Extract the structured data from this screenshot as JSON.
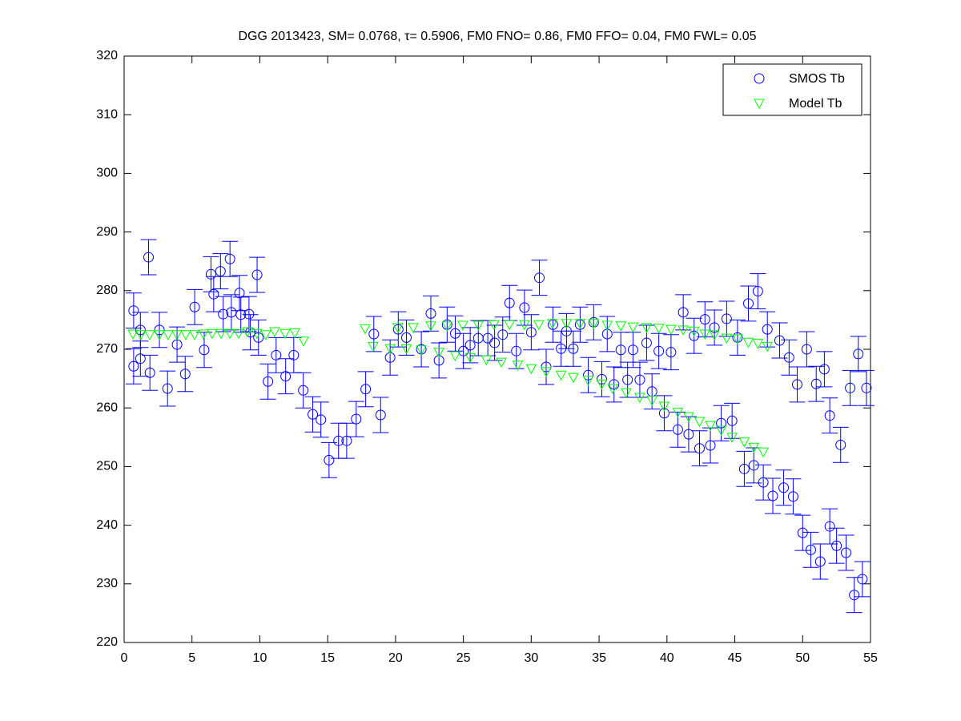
{
  "chart_data": {
    "type": "scatter",
    "title": "DGG 2013423, SM= 0.0768, τ= 0.5906, FM0 FNO= 0.86, FM0 FFO= 0.04, FM0 FWL= 0.05",
    "xlim": [
      0,
      55
    ],
    "xticks": [
      0,
      5,
      10,
      15,
      20,
      25,
      30,
      35,
      40,
      45,
      50,
      55
    ],
    "ylim": [
      220,
      320
    ],
    "yticks": [
      220,
      230,
      240,
      250,
      260,
      270,
      280,
      290,
      300,
      310,
      320
    ],
    "grid": false,
    "legend": "top-right",
    "series": [
      {
        "name": "SMOS Tb",
        "color": "#0000ff",
        "marker": "circle",
        "error": 3,
        "x": [
          0.7,
          0.7,
          1.2,
          1.2,
          1.8,
          1.9,
          2.6,
          3.2,
          3.9,
          4.5,
          5.2,
          5.9,
          6.4,
          6.6,
          7.1,
          7.3,
          7.8,
          7.9,
          8.5,
          8.6,
          9.2,
          9.3,
          9.8,
          9.9,
          10.6,
          11.2,
          11.9,
          12.5,
          13.2,
          13.9,
          14.5,
          15.1,
          15.8,
          16.4,
          17.1,
          17.8,
          18.4,
          18.9,
          19.6,
          20.2,
          20.8,
          21.9,
          22.6,
          23.2,
          23.8,
          24.4,
          25.0,
          25.5,
          26.1,
          26.8,
          27.3,
          27.9,
          28.4,
          28.9,
          29.5,
          30.0,
          30.6,
          31.1,
          31.6,
          32.2,
          32.6,
          33.1,
          33.6,
          34.2,
          34.6,
          35.2,
          35.6,
          36.1,
          36.6,
          37.1,
          37.5,
          38.0,
          38.5,
          38.9,
          39.4,
          39.8,
          40.3,
          40.8,
          41.2,
          41.6,
          42.0,
          42.4,
          42.8,
          43.2,
          43.5,
          44.0,
          44.4,
          44.8,
          45.2,
          45.7,
          46.0,
          46.4,
          46.7,
          47.1,
          47.4,
          47.8,
          48.3,
          48.6,
          49.0,
          49.3,
          49.6,
          50.0,
          50.3,
          50.6,
          51.0,
          51.3,
          51.6,
          52.0,
          52.0,
          52.5,
          52.8,
          53.2,
          53.5,
          53.8,
          54.1,
          54.4,
          54.7
        ],
        "values": [
          276.6,
          267.1,
          273.3,
          268.4,
          285.7,
          266.0,
          273.3,
          263.3,
          270.8,
          265.8,
          277.2,
          269.9,
          282.8,
          279.4,
          283.3,
          276.0,
          285.4,
          276.3,
          279.6,
          275.9,
          276.0,
          272.9,
          282.7,
          272.0,
          264.5,
          269.0,
          265.4,
          269.0,
          263.0,
          258.9,
          258.0,
          251.1,
          254.4,
          254.4,
          258.1,
          263.2,
          272.6,
          258.8,
          268.6,
          273.4,
          272.0,
          270.0,
          276.1,
          268.1,
          274.2,
          272.7,
          269.7,
          270.7,
          271.9,
          271.9,
          271.1,
          272.5,
          277.9,
          269.7,
          277.1,
          272.9,
          282.2,
          267.0,
          274.2,
          270.1,
          273.1,
          270.1,
          274.2,
          265.6,
          274.6,
          264.9,
          272.6,
          264.0,
          269.9,
          264.8,
          269.9,
          264.8,
          271.1,
          262.8,
          269.7,
          259.1,
          269.5,
          256.3,
          276.3,
          255.5,
          272.3,
          253.1,
          275.1,
          253.6,
          273.7,
          257.4,
          275.2,
          257.8,
          272.0,
          249.6,
          277.8,
          250.2,
          279.9,
          247.3,
          273.4,
          245.0,
          271.5,
          246.4,
          268.6,
          244.9,
          264.0,
          238.7,
          270.0,
          235.8,
          264.1,
          233.8,
          266.6,
          258.7,
          239.8,
          236.5,
          253.7,
          235.3,
          263.4,
          228.1,
          269.2,
          230.8,
          263.4
        ]
      },
      {
        "name": "Model Tb",
        "color": "#00ff00",
        "marker": "triangle-down",
        "x": [
          0.65,
          1.24,
          1.89,
          2.6,
          3.24,
          3.89,
          4.54,
          5.19,
          5.84,
          6.49,
          7.14,
          7.79,
          8.44,
          9.09,
          9.79,
          10.44,
          11.09,
          11.86,
          12.57,
          13.22,
          17.76,
          20.18,
          21.3,
          22.6,
          23.8,
          24.96,
          26.1,
          27.26,
          28.4,
          29.5,
          30.56,
          31.56,
          32.6,
          33.6,
          34.6,
          35.6,
          36.6,
          37.5,
          38.5,
          39.4,
          40.3,
          41.2,
          42.0,
          42.8,
          43.5,
          44.4,
          45.2,
          46.0,
          46.7,
          47.4,
          18.35,
          19.6,
          20.8,
          21.9,
          23.2,
          24.4,
          25.5,
          26.7,
          27.8,
          29.0,
          30.0,
          31.1,
          32.2,
          33.1,
          34.2,
          35.2,
          36.0,
          37.0,
          38.0,
          38.9,
          39.8,
          40.8,
          41.6,
          42.4,
          43.2,
          44.0,
          44.8,
          45.7,
          46.4,
          47.1
        ],
        "values": [
          272.6,
          272.5,
          272.5,
          272.5,
          272.5,
          272.5,
          272.5,
          272.5,
          272.6,
          272.7,
          272.7,
          272.7,
          272.7,
          273.0,
          272.7,
          272.5,
          273.0,
          272.7,
          272.8,
          271.4,
          273.5,
          273.7,
          273.7,
          274.0,
          274.0,
          274.1,
          274.1,
          274.2,
          274.2,
          274.2,
          274.2,
          274.4,
          274.4,
          274.4,
          274.4,
          274.1,
          274.0,
          273.8,
          273.7,
          273.6,
          273.4,
          273.3,
          273.1,
          272.6,
          272.5,
          271.9,
          271.8,
          271.2,
          271.0,
          270.5,
          270.5,
          270.1,
          270.1,
          269.9,
          269.5,
          268.9,
          268.6,
          268.2,
          267.8,
          267.3,
          266.7,
          266.2,
          265.6,
          265.2,
          264.7,
          264.1,
          263.3,
          262.6,
          261.8,
          261.3,
          260.3,
          259.3,
          258.5,
          257.7,
          257.0,
          256.2,
          255.0,
          254.2,
          253.3,
          252.5
        ]
      }
    ]
  }
}
